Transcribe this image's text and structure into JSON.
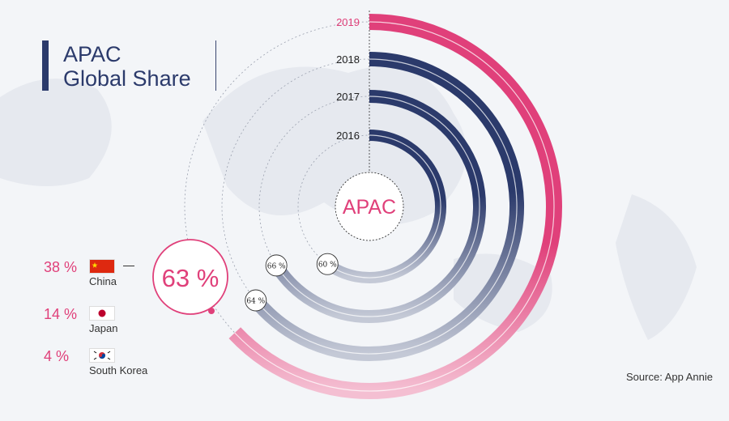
{
  "title": {
    "line1": "APAC",
    "line2": "Global Share"
  },
  "source": "Source: App Annie",
  "center_label": "APAC",
  "highlight_value": "63 %",
  "colors": {
    "accent": "#e0407a",
    "navy": "#2b3a6b",
    "grey": "#9aa3b8",
    "background": "#f3f5f8"
  },
  "countries": [
    {
      "pct": "38 %",
      "name": "China",
      "flag": "china-flag"
    },
    {
      "pct": "14 %",
      "name": "Japan",
      "flag": "japan-flag"
    },
    {
      "pct": "4 %",
      "name": "South Korea",
      "flag": "south-korea-flag"
    }
  ],
  "chart_data": {
    "type": "radial-bar",
    "title": "APAC Global Share",
    "unit": "%",
    "series": [
      {
        "year": "2016",
        "value": 60,
        "label": "60 %"
      },
      {
        "year": "2017",
        "value": 66,
        "label": "66 %"
      },
      {
        "year": "2018",
        "value": 64,
        "label": "64 %"
      },
      {
        "year": "2019",
        "value": 63,
        "label": "63 %"
      }
    ],
    "breakdown_2019": [
      {
        "country": "China",
        "value": 38
      },
      {
        "country": "Japan",
        "value": 14
      },
      {
        "country": "South Korea",
        "value": 4
      }
    ]
  }
}
